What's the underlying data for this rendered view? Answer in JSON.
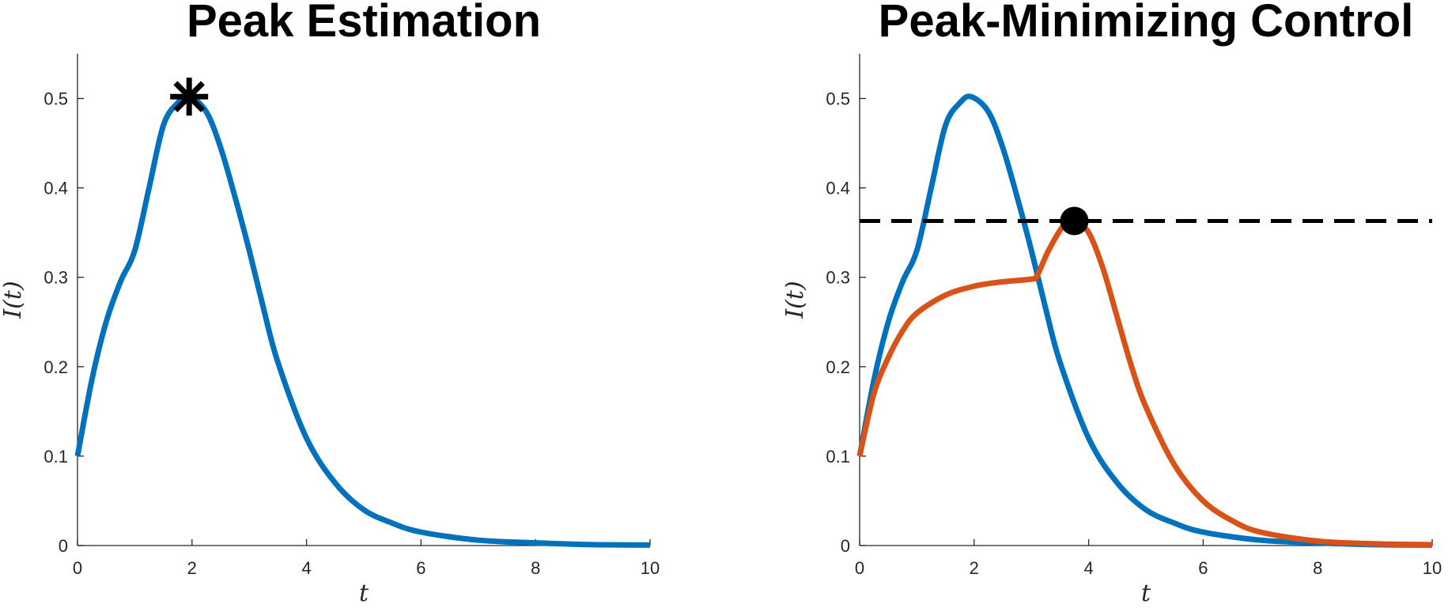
{
  "chart_data": [
    {
      "type": "line",
      "title": "Peak Estimation",
      "xlabel": "t",
      "ylabel": "I(t)",
      "xlim": [
        0,
        10
      ],
      "ylim": [
        0,
        0.55
      ],
      "xticks": [
        0,
        2,
        4,
        6,
        8,
        10
      ],
      "yticks": [
        0,
        0.1,
        0.2,
        0.3,
        0.4,
        0.5
      ],
      "xtick_labels": [
        "0",
        "2",
        "4",
        "6",
        "8",
        "10"
      ],
      "ytick_labels": [
        "0",
        "0.1",
        "0.2",
        "0.3",
        "0.4",
        "0.5"
      ],
      "grid": false,
      "series": [
        {
          "color": "#0072BD",
          "x": [
            0,
            0.25,
            0.5,
            0.75,
            1.0,
            1.25,
            1.5,
            1.75,
            1.95,
            2.25,
            2.5,
            2.75,
            3.0,
            3.25,
            3.5,
            4.0,
            4.5,
            5.0,
            5.5,
            6.0,
            7.0,
            8.0,
            9.0,
            10.0
          ],
          "values": [
            0.1,
            0.185,
            0.25,
            0.295,
            0.33,
            0.4,
            0.47,
            0.495,
            0.502,
            0.485,
            0.445,
            0.39,
            0.33,
            0.265,
            0.205,
            0.12,
            0.07,
            0.04,
            0.025,
            0.015,
            0.006,
            0.003,
            0.001,
            0.0005
          ]
        }
      ],
      "markers": [
        {
          "shape": "asterisk",
          "color": "#000000",
          "x": 1.95,
          "y": 0.502
        }
      ]
    },
    {
      "type": "line",
      "title": "Peak-Minimizing Control",
      "xlabel": "t",
      "ylabel": "I(t)",
      "xlim": [
        0,
        10
      ],
      "ylim": [
        0,
        0.55
      ],
      "xticks": [
        0,
        2,
        4,
        6,
        8,
        10
      ],
      "yticks": [
        0,
        0.1,
        0.2,
        0.3,
        0.4,
        0.5
      ],
      "xtick_labels": [
        "0",
        "2",
        "4",
        "6",
        "8",
        "10"
      ],
      "ytick_labels": [
        "0",
        "0.1",
        "0.2",
        "0.3",
        "0.4",
        "0.5"
      ],
      "grid": false,
      "series": [
        {
          "color": "#0072BD",
          "x": [
            0,
            0.25,
            0.5,
            0.75,
            1.0,
            1.25,
            1.5,
            1.75,
            1.95,
            2.25,
            2.5,
            2.75,
            3.0,
            3.25,
            3.5,
            4.0,
            4.5,
            5.0,
            5.5,
            6.0,
            7.0,
            8.0,
            9.0,
            10.0
          ],
          "values": [
            0.1,
            0.185,
            0.25,
            0.295,
            0.33,
            0.4,
            0.47,
            0.495,
            0.502,
            0.485,
            0.445,
            0.39,
            0.33,
            0.265,
            0.205,
            0.12,
            0.07,
            0.04,
            0.025,
            0.015,
            0.006,
            0.003,
            0.001,
            0.0005
          ]
        },
        {
          "color": "#D95319",
          "x": [
            0,
            0.25,
            0.5,
            0.75,
            1.0,
            1.5,
            2.0,
            2.5,
            3.0,
            3.1,
            3.3,
            3.55,
            3.75,
            4.0,
            4.25,
            4.5,
            4.75,
            5.0,
            5.5,
            6.0,
            6.5,
            7.0,
            8.0,
            9.0,
            10.0
          ],
          "values": [
            0.1,
            0.17,
            0.21,
            0.24,
            0.26,
            0.28,
            0.29,
            0.295,
            0.298,
            0.302,
            0.33,
            0.357,
            0.363,
            0.35,
            0.31,
            0.255,
            0.2,
            0.155,
            0.09,
            0.05,
            0.028,
            0.015,
            0.005,
            0.002,
            0.001
          ]
        }
      ],
      "reference_line": {
        "style": "dashed",
        "color": "#000000",
        "y": 0.363
      },
      "markers": [
        {
          "shape": "filled-circle",
          "color": "#000000",
          "x": 3.75,
          "y": 0.363
        }
      ]
    }
  ]
}
